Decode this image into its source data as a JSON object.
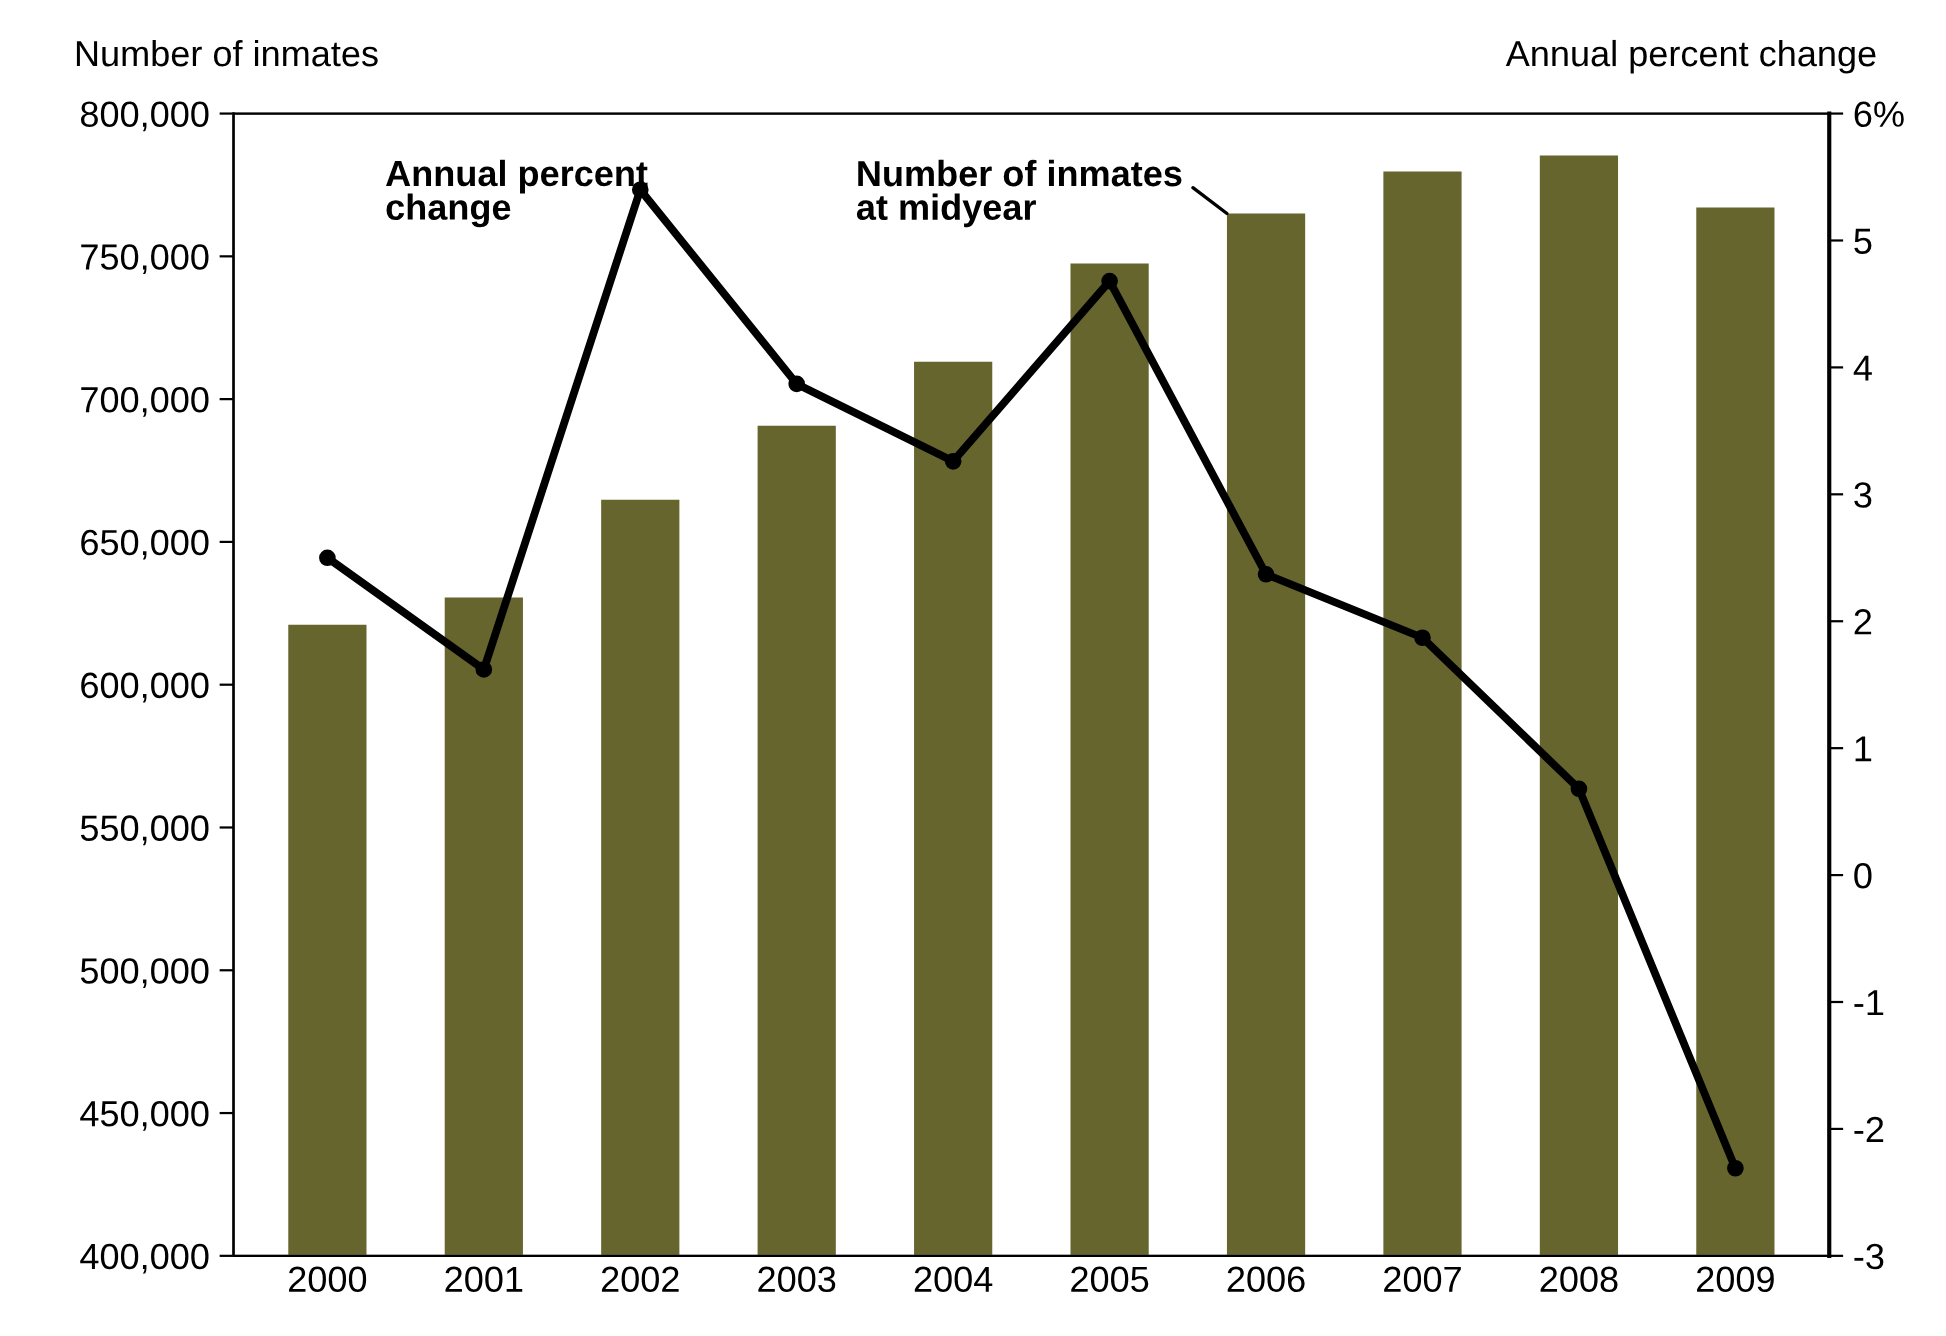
{
  "chart_data": {
    "type": "bar",
    "ylabel": "Number of inmates",
    "y2label": "Annual percent change",
    "categories": [
      "2000",
      "2001",
      "2002",
      "2003",
      "2004",
      "2005",
      "2006",
      "2007",
      "2008",
      "2009"
    ],
    "series": [
      {
        "color": "#66652e",
        "values": [
          621000,
          630500,
          664800,
          690700,
          713100,
          747500,
          765000,
          779700,
          785300,
          767100
        ]
      },
      {
        "name": "Annual percent\nchange",
        "type": "line",
        "axis": "y2",
        "color": "#000000",
        "marker": "circle",
        "line_style": "solid",
        "values": [
          2.5,
          1.62,
          5.4,
          3.87,
          3.26,
          4.68,
          2.37,
          1.87,
          0.68,
          -2.31
        ]
      }
    ],
    "ylim": [
      400000,
      800000
    ],
    "yticks": [
      {
        "value": 400000,
        "label": "400,000"
      },
      {
        "value": 450000,
        "label": "450,000"
      },
      {
        "value": 500000,
        "label": "500,000"
      },
      {
        "value": 550000,
        "label": "550,000"
      },
      {
        "value": 600000,
        "label": "600,000"
      },
      {
        "value": 650000,
        "label": "650,000"
      },
      {
        "value": 700000,
        "label": "700,000"
      },
      {
        "value": 750000,
        "label": "750,000"
      },
      {
        "value": 800000,
        "label": "800,000"
      }
    ],
    "y2lim": [
      -3,
      6
    ],
    "y2ticks": [
      -3,
      -2,
      -1,
      0,
      1,
      2,
      3,
      4,
      5,
      {
        "value": 6,
        "label": "6%"
      }
    ],
    "annotations": [
      {
        "text": "Number of inmates\nat midyear",
        "x": "2006",
        "y": 765000
      }
    ],
    "grid": false,
    "legend": false
  }
}
